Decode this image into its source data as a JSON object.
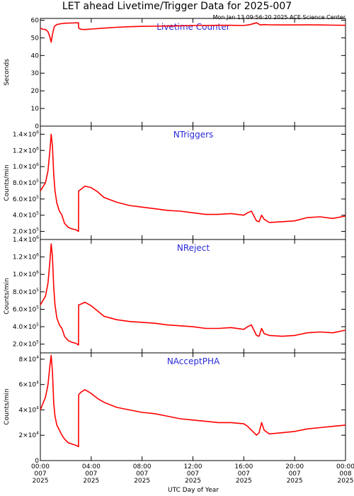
{
  "title": "LET ahead Livetime/Trigger Data for 2025-007",
  "timestamp": "Mon Jan 13 09:56:20 2025 ACE Science Center",
  "xlabel": "UTC Day of Year",
  "xticks": [
    {
      "hour": 0,
      "time": "00:00",
      "doy": "007",
      "year": "2025"
    },
    {
      "hour": 4,
      "time": "04:00",
      "doy": "007",
      "year": "2025"
    },
    {
      "hour": 8,
      "time": "08:00",
      "doy": "007",
      "year": "2025"
    },
    {
      "hour": 12,
      "time": "12:00",
      "doy": "007",
      "year": "2025"
    },
    {
      "hour": 16,
      "time": "16:00",
      "doy": "007",
      "year": "2025"
    },
    {
      "hour": 20,
      "time": "20:00",
      "doy": "007",
      "year": "2025"
    },
    {
      "hour": 24,
      "time": "00:00",
      "doy": "008",
      "year": "2025"
    }
  ],
  "colors": {
    "series": "#ff0000",
    "panel_label": "#2a2ad8",
    "axes": "#000000"
  },
  "chart_data": [
    {
      "type": "line",
      "id": "livetime",
      "label": "Livetime Counter",
      "ylabel": "Seconds",
      "xlim": [
        0,
        24
      ],
      "ylim": [
        0,
        61
      ],
      "yticks": [
        {
          "v": 0,
          "m": "0"
        },
        {
          "v": 10,
          "m": "10"
        },
        {
          "v": 20,
          "m": "20"
        },
        {
          "v": 30,
          "m": "30"
        },
        {
          "v": 40,
          "m": "40"
        },
        {
          "v": 50,
          "m": "50"
        },
        {
          "v": 60,
          "m": "60"
        }
      ],
      "x": [
        0,
        0.15,
        0.3,
        0.45,
        0.6,
        0.75,
        0.85,
        0.95,
        1.1,
        1.3,
        1.6,
        2.0,
        2.4,
        2.8,
        3.0,
        3.01,
        3.2,
        3.5,
        4.0,
        5.0,
        6.0,
        7.0,
        8.0,
        9.0,
        10.0,
        11.0,
        12.0,
        13.0,
        14.0,
        15.0,
        16.0,
        16.5,
        17.0,
        17.3,
        17.6,
        18.0,
        19.0,
        20.0,
        21.0,
        22.0,
        23.0,
        24.0
      ],
      "y": [
        55.5,
        55.0,
        54.8,
        54.5,
        53.5,
        50.5,
        47.5,
        52.0,
        56.5,
        57.5,
        58.0,
        58.3,
        58.4,
        58.5,
        58.5,
        55.5,
        54.8,
        54.7,
        55.0,
        55.5,
        56.0,
        56.3,
        56.5,
        56.6,
        56.7,
        56.8,
        57.0,
        57.0,
        57.1,
        57.1,
        57.0,
        57.5,
        58.5,
        57.3,
        57.5,
        57.4,
        57.3,
        57.3,
        57.4,
        57.3,
        57.2,
        57.1
      ]
    },
    {
      "type": "line",
      "id": "ntriggers",
      "label": "NTriggers",
      "ylabel": "Counts/min",
      "xlim": [
        0,
        24
      ],
      "ylim": [
        100000,
        1500000
      ],
      "yticks": [
        {
          "v": 200000,
          "m": "2.0×10",
          "e": "5"
        },
        {
          "v": 400000,
          "m": "4.0×10",
          "e": "5"
        },
        {
          "v": 600000,
          "m": "6.0×10",
          "e": "5"
        },
        {
          "v": 800000,
          "m": "8.0×10",
          "e": "5"
        },
        {
          "v": 1000000,
          "m": "1.0×10",
          "e": "6"
        },
        {
          "v": 1200000,
          "m": "1.2×10",
          "e": "6"
        },
        {
          "v": 1400000,
          "m": "1.4×10",
          "e": "6"
        }
      ],
      "x": [
        0,
        0.2,
        0.4,
        0.6,
        0.75,
        0.85,
        0.95,
        1.05,
        1.15,
        1.3,
        1.5,
        1.7,
        1.9,
        2.2,
        2.5,
        2.8,
        3.0,
        3.01,
        3.2,
        3.5,
        4.0,
        4.5,
        5.0,
        6.0,
        7.0,
        8.0,
        9.0,
        10.0,
        11.0,
        12.0,
        13.0,
        14.0,
        15.0,
        16.0,
        16.3,
        16.6,
        17.0,
        17.2,
        17.4,
        17.6,
        18.0,
        19.0,
        20.0,
        21.0,
        22.0,
        23.0,
        24.0
      ],
      "y": [
        700000,
        750000,
        800000,
        950000,
        1200000,
        1400000,
        1250000,
        900000,
        700000,
        550000,
        450000,
        400000,
        300000,
        250000,
        230000,
        220000,
        200000,
        700000,
        720000,
        760000,
        740000,
        690000,
        620000,
        560000,
        520000,
        500000,
        480000,
        460000,
        450000,
        430000,
        410000,
        410000,
        420000,
        400000,
        430000,
        450000,
        330000,
        320000,
        400000,
        350000,
        310000,
        320000,
        330000,
        370000,
        380000,
        360000,
        390000
      ]
    },
    {
      "type": "line",
      "id": "nreject",
      "label": "NReject",
      "ylabel": "Counts/min",
      "xlim": [
        0,
        24
      ],
      "ylim": [
        100000,
        1400000
      ],
      "yticks": [
        {
          "v": 200000,
          "m": "2.0×10",
          "e": "5"
        },
        {
          "v": 400000,
          "m": "4.0×10",
          "e": "5"
        },
        {
          "v": 600000,
          "m": "6.0×10",
          "e": "5"
        },
        {
          "v": 800000,
          "m": "8.0×10",
          "e": "5"
        },
        {
          "v": 1000000,
          "m": "1.0×10",
          "e": "6"
        },
        {
          "v": 1200000,
          "m": "1.2×10",
          "e": "6"
        },
        {
          "v": 1400000,
          "m": "1.4×10",
          "e": "6"
        }
      ],
      "x": [
        0,
        0.2,
        0.4,
        0.6,
        0.75,
        0.85,
        0.95,
        1.05,
        1.15,
        1.3,
        1.5,
        1.7,
        1.9,
        2.2,
        2.5,
        2.8,
        3.0,
        3.01,
        3.2,
        3.5,
        4.0,
        4.5,
        5.0,
        6.0,
        7.0,
        8.0,
        9.0,
        10.0,
        11.0,
        12.0,
        13.0,
        14.0,
        15.0,
        16.0,
        16.3,
        16.6,
        17.0,
        17.2,
        17.4,
        17.6,
        18.0,
        19.0,
        20.0,
        21.0,
        22.0,
        23.0,
        24.0
      ],
      "y": [
        650000,
        700000,
        750000,
        900000,
        1150000,
        1350000,
        1200000,
        850000,
        650000,
        500000,
        420000,
        380000,
        290000,
        240000,
        220000,
        210000,
        190000,
        650000,
        660000,
        680000,
        640000,
        580000,
        520000,
        480000,
        460000,
        450000,
        440000,
        420000,
        410000,
        400000,
        380000,
        380000,
        390000,
        370000,
        400000,
        420000,
        300000,
        290000,
        380000,
        320000,
        300000,
        290000,
        300000,
        330000,
        340000,
        330000,
        360000
      ]
    },
    {
      "type": "line",
      "id": "nacceptpha",
      "label": "NAcceptPHA",
      "ylabel": "Counts/min",
      "xlim": [
        0,
        24
      ],
      "ylim": [
        0,
        85000
      ],
      "yticks": [
        {
          "v": 0,
          "m": "0"
        },
        {
          "v": 20000,
          "m": "2×10",
          "e": "4"
        },
        {
          "v": 40000,
          "m": "4×10",
          "e": "4"
        },
        {
          "v": 60000,
          "m": "6×10",
          "e": "4"
        },
        {
          "v": 80000,
          "m": "8×10",
          "e": "4"
        }
      ],
      "x": [
        0,
        0.2,
        0.4,
        0.6,
        0.75,
        0.85,
        0.95,
        1.05,
        1.15,
        1.3,
        1.5,
        1.7,
        1.9,
        2.2,
        2.5,
        2.8,
        3.0,
        3.01,
        3.2,
        3.5,
        4.0,
        4.5,
        5.0,
        6.0,
        7.0,
        8.0,
        9.0,
        10.0,
        11.0,
        12.0,
        13.0,
        14.0,
        15.0,
        16.0,
        16.3,
        16.6,
        17.0,
        17.2,
        17.4,
        17.6,
        18.0,
        19.0,
        20.0,
        21.0,
        22.0,
        23.0,
        24.0
      ],
      "y": [
        40000,
        45000,
        50000,
        60000,
        75000,
        83000,
        70000,
        45000,
        35000,
        28000,
        24000,
        20000,
        17000,
        14000,
        13000,
        12000,
        11000,
        52000,
        54000,
        56000,
        53000,
        49000,
        46000,
        42000,
        40000,
        38000,
        37000,
        35000,
        33000,
        32000,
        31000,
        30000,
        30000,
        29000,
        27000,
        24000,
        20000,
        22000,
        30000,
        24000,
        21000,
        22000,
        23000,
        25000,
        26000,
        27000,
        28000
      ]
    }
  ]
}
